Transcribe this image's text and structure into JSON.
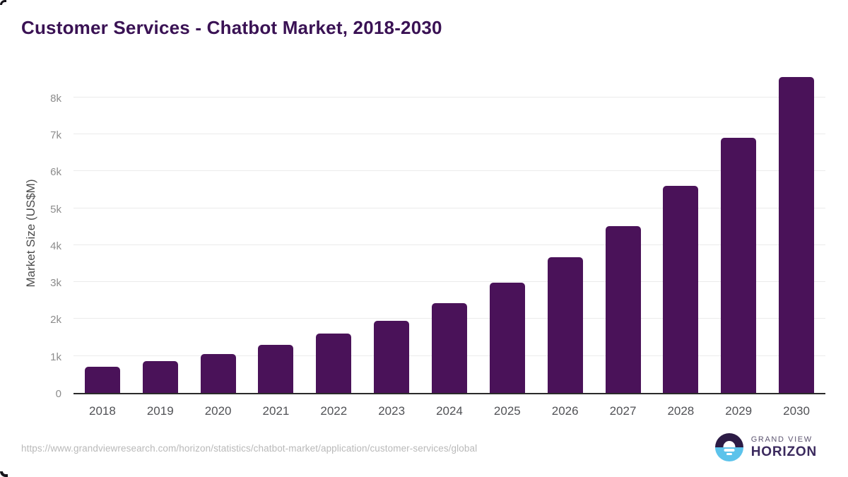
{
  "chart_data": {
    "type": "bar",
    "title": "Customer Services - Chatbot Market, 2018-2030",
    "categories": [
      "2018",
      "2019",
      "2020",
      "2021",
      "2022",
      "2023",
      "2024",
      "2025",
      "2026",
      "2027",
      "2028",
      "2029",
      "2030"
    ],
    "values": [
      700,
      855,
      1050,
      1300,
      1600,
      1950,
      2420,
      2980,
      3670,
      4520,
      5600,
      6900,
      8550
    ],
    "xlabel": "",
    "ylabel": "Market Size (US$M)",
    "ylim": [
      0,
      8800
    ],
    "ytick_labels": [
      "0",
      "1k",
      "2k",
      "3k",
      "4k",
      "5k",
      "6k",
      "7k",
      "8k"
    ],
    "grid": true,
    "legend": false,
    "bar_color": "#4a1259"
  },
  "footer": {
    "source_url": "https://www.grandviewresearch.com/horizon/statistics/chatbot-market/application/customer-services/global",
    "brand": {
      "line1": "GRAND VIEW",
      "line2": "HORIZON"
    }
  },
  "colors": {
    "title": "#3a1254",
    "bar": "#4a1259",
    "axis_line": "#2b2b2b",
    "gridline": "#ebebeb",
    "tick_label": "#8c8c8c",
    "x_label": "#515256",
    "url_text": "#b9b9b9",
    "logo_dark": "#2c1b45",
    "logo_blue": "#5cc3eb"
  }
}
